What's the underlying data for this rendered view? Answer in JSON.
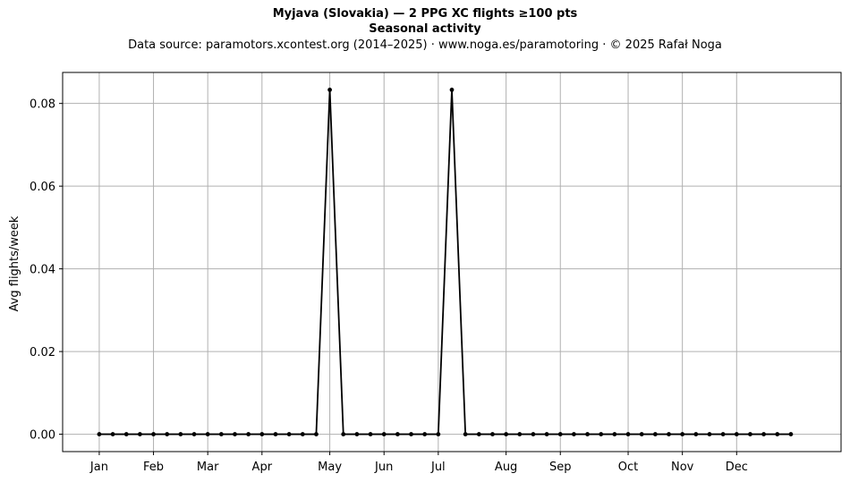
{
  "header": {
    "title": "Myjava (Slovakia)  —  2 PPG XC flights ≥100 pts",
    "subtitle": "Seasonal activity",
    "source": "Data source: paramotors.xcontest.org (2014–2025)  ·  www.noga.es/paramotoring  ·  © 2025 Rafał Noga"
  },
  "chart_data": {
    "type": "line",
    "title": "Myjava (Slovakia)  —  2 PPG XC flights ≥100 pts",
    "subtitle": "Seasonal activity",
    "xlabel": "",
    "ylabel": "Avg flights/week",
    "x_unit": "week of year",
    "x": [
      1,
      2,
      3,
      4,
      5,
      6,
      7,
      8,
      9,
      10,
      11,
      12,
      13,
      14,
      15,
      16,
      17,
      18,
      19,
      20,
      21,
      22,
      23,
      24,
      25,
      26,
      27,
      28,
      29,
      30,
      31,
      32,
      33,
      34,
      35,
      36,
      37,
      38,
      39,
      40,
      41,
      42,
      43,
      44,
      45,
      46,
      47,
      48,
      49,
      50,
      51,
      52
    ],
    "series": [
      {
        "name": "",
        "color": "#000000",
        "values": [
          0,
          0,
          0,
          0,
          0,
          0,
          0,
          0,
          0,
          0,
          0,
          0,
          0,
          0,
          0,
          0,
          0,
          0.0833,
          0,
          0,
          0,
          0,
          0,
          0,
          0,
          0,
          0.0833,
          0,
          0,
          0,
          0,
          0,
          0,
          0,
          0,
          0,
          0,
          0,
          0,
          0,
          0,
          0,
          0,
          0,
          0,
          0,
          0,
          0,
          0,
          0,
          0,
          0
        ]
      }
    ],
    "x_ticks": [
      {
        "label": "Jan",
        "week": 1
      },
      {
        "label": "Feb",
        "week": 5
      },
      {
        "label": "Mar",
        "week": 9
      },
      {
        "label": "Apr",
        "week": 13
      },
      {
        "label": "May",
        "week": 18
      },
      {
        "label": "Jun",
        "week": 22
      },
      {
        "label": "Jul",
        "week": 26
      },
      {
        "label": "Aug",
        "week": 31
      },
      {
        "label": "Sep",
        "week": 35
      },
      {
        "label": "Oct",
        "week": 40
      },
      {
        "label": "Nov",
        "week": 44
      },
      {
        "label": "Dec",
        "week": 48
      }
    ],
    "y_ticks": [
      {
        "label": "0.00",
        "value": 0
      },
      {
        "label": "0.02",
        "value": 0.02
      },
      {
        "label": "0.04",
        "value": 0.04
      },
      {
        "label": "0.06",
        "value": 0.06
      },
      {
        "label": "0.08",
        "value": 0.08
      }
    ],
    "xlim": [
      -1.7,
      55.7
    ],
    "ylim": [
      -0.0042,
      0.0875
    ],
    "grid": true,
    "legend": "none",
    "colors": {
      "line": "#000000",
      "grid": "#b0b0b0",
      "axes": "#000000"
    }
  }
}
